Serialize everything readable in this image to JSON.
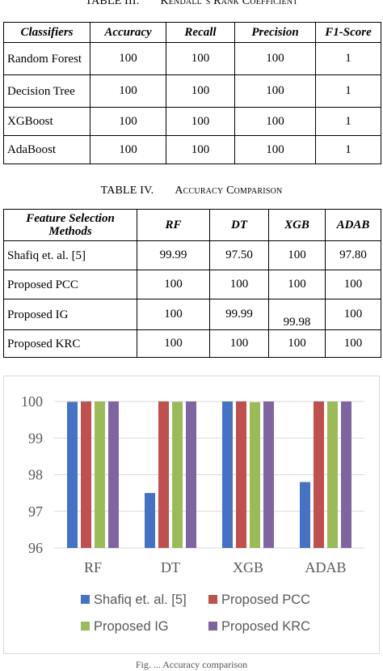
{
  "table3": {
    "caption_num": "TABLE III.",
    "caption_title": "Kendall’s Rank Coefficient",
    "headers": [
      "Classifiers",
      "Accuracy",
      "Recall",
      "Precision",
      "F1-Score"
    ],
    "rows": [
      [
        "Random Forest",
        "100",
        "100",
        "100",
        "1"
      ],
      [
        "Decision Tree",
        "100",
        "100",
        "100",
        "1"
      ],
      [
        "XGBoost",
        "100",
        "100",
        "100",
        "1"
      ],
      [
        "AdaBoost",
        "100",
        "100",
        "100",
        "1"
      ]
    ]
  },
  "table4": {
    "caption_num": "TABLE IV.",
    "caption_title": "Accuracy Comparison",
    "headers": [
      "Feature Selection Methods",
      "RF",
      "DT",
      "XGB",
      "ADAB"
    ],
    "rows": [
      [
        "Shafiq et. al. [5]",
        "99.99",
        "97.50",
        "100",
        "97.80"
      ],
      [
        "Proposed PCC",
        "100",
        "100",
        "100",
        "100"
      ],
      [
        "Proposed IG",
        "100",
        "99.99",
        "99.98",
        "100"
      ],
      [
        "Proposed KRC",
        "100",
        "100",
        "100",
        "100"
      ]
    ]
  },
  "chart_data": {
    "type": "bar",
    "categories": [
      "RF",
      "DT",
      "XGB",
      "ADAB"
    ],
    "series": [
      {
        "name": "Shafiq et. al. [5]",
        "color": "#4472c4",
        "values": [
          99.99,
          97.5,
          100,
          97.8
        ]
      },
      {
        "name": "Proposed PCC",
        "color": "#c0504d",
        "values": [
          100,
          100,
          100,
          100
        ]
      },
      {
        "name": "Proposed IG",
        "color": "#9bbb59",
        "values": [
          100,
          99.99,
          99.98,
          100
        ]
      },
      {
        "name": "Proposed KRC",
        "color": "#8064a2",
        "values": [
          100,
          100,
          100,
          100
        ]
      }
    ],
    "ylim": [
      96,
      100
    ],
    "yticks": [
      96,
      97,
      98,
      99,
      100
    ],
    "grid": true,
    "legend": "bottom"
  },
  "figure_caption": "Fig. ... Accuracy comparison"
}
